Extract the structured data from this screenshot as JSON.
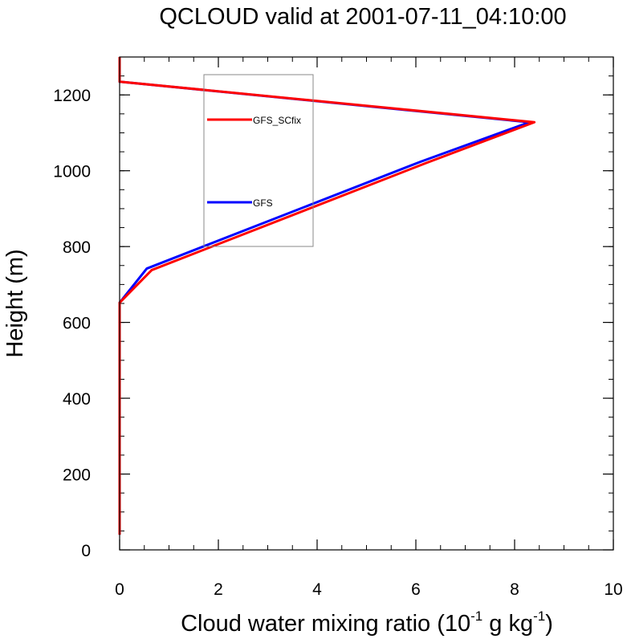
{
  "chart_data": {
    "type": "line",
    "title": "QCLOUD valid at 2001-07-11_04:10:00",
    "xlabel_main": "Cloud water mixing ratio (10",
    "xlabel_sup1": "-1",
    "xlabel_mid": " g kg",
    "xlabel_sup2": "-1",
    "xlabel_end": ")",
    "ylabel": "Height (m)",
    "xlim": [
      0,
      10
    ],
    "ylim": [
      0,
      1300
    ],
    "x_ticks": [
      0,
      2,
      4,
      6,
      8,
      10
    ],
    "y_ticks": [
      0,
      200,
      400,
      600,
      800,
      1000,
      1200
    ],
    "x_tick_labels": [
      "0",
      "2",
      "4",
      "6",
      "8",
      "10"
    ],
    "y_tick_labels": [
      "0",
      "200",
      "400",
      "600",
      "800",
      "1000",
      "1200"
    ],
    "grid": false,
    "legend_placement": "top-center",
    "series": [
      {
        "name": "GFS",
        "color": "#0000ff",
        "points": [
          [
            0,
            40
          ],
          [
            0,
            652
          ],
          [
            0.55,
            742
          ],
          [
            6.1,
            1024
          ],
          [
            8.3,
            1128
          ],
          [
            0,
            1235
          ],
          [
            0,
            1300
          ]
        ]
      },
      {
        "name": "GFS_SCfix",
        "color": "#ff0000",
        "points": [
          [
            0,
            40
          ],
          [
            0,
            652
          ],
          [
            0.65,
            738
          ],
          [
            6.2,
            1020
          ],
          [
            8.4,
            1128
          ],
          [
            0,
            1235
          ],
          [
            0,
            1300
          ]
        ]
      }
    ]
  }
}
